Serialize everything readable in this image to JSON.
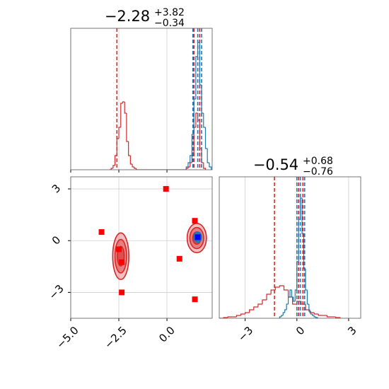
{
  "chart_data": [
    {
      "type": "histogram",
      "panel": "top-left",
      "title": {
        "value": "−2.28",
        "upper": "+3.82",
        "lower": "−0.34"
      },
      "xlim": [
        -5,
        2.35
      ],
      "ylim": [
        0,
        1
      ],
      "xticks": [
        -5,
        -2.5,
        0
      ],
      "grid": true,
      "series": [
        {
          "color": "#d62728",
          "bins": [
            -3.0,
            -2.9,
            -2.8,
            -2.7,
            -2.6,
            -2.5,
            -2.4,
            -2.3,
            -2.2,
            -2.1,
            -2.0,
            -1.9,
            -1.8,
            -1.7,
            -1.6,
            -1.5,
            -1.4,
            -1.3,
            -1.2,
            -1.1,
            -1.0,
            -0.9,
            -0.8,
            -0.7,
            -0.6,
            -0.5,
            -0.4,
            -0.3,
            -0.2,
            -0.1,
            0.0,
            0.1,
            0.2,
            0.3,
            0.4,
            0.5,
            0.6,
            0.7,
            0.8,
            0.9,
            1.0,
            1.1,
            1.2,
            1.3,
            1.4,
            1.5,
            1.6,
            1.7,
            1.8,
            1.9,
            2.0
          ],
          "values": [
            0,
            0.01,
            0.03,
            0.1,
            0.22,
            0.3,
            0.47,
            0.48,
            0.4,
            0.2,
            0.1,
            0.04,
            0.02,
            0.01,
            0,
            0,
            0,
            0,
            0,
            0,
            0,
            0,
            0,
            0,
            0,
            0,
            0,
            0,
            0,
            0,
            0,
            0,
            0,
            0,
            0,
            0,
            0,
            0,
            0,
            0,
            0.01,
            0.02,
            0.05,
            0.12,
            0.3,
            0.4,
            0.35,
            0.15,
            0.05,
            0.01
          ],
          "quantiles": [
            -2.6,
            1.4,
            1.7
          ]
        },
        {
          "color": "#1f77b4",
          "bins": [
            1.0,
            1.1,
            1.2,
            1.3,
            1.4,
            1.5,
            1.6,
            1.7,
            1.8,
            1.9,
            2.0,
            2.1,
            2.2,
            2.3
          ],
          "values": [
            0.02,
            0.05,
            0.1,
            0.25,
            0.5,
            0.8,
            0.9,
            0.6,
            0.4,
            0.3,
            0.15,
            0.05,
            0.02
          ],
          "quantiles": [
            1.35,
            1.6,
            1.8
          ]
        }
      ]
    },
    {
      "type": "scatter",
      "panel": "bottom-left",
      "xlim": [
        -5,
        2.35
      ],
      "ylim": [
        -4.5,
        3.7
      ],
      "xticks": [
        {
          "value": -5,
          "label": "−5.0"
        },
        {
          "value": -2.5,
          "label": "−2.5"
        },
        {
          "value": 0,
          "label": "0.0"
        }
      ],
      "yticks": [
        {
          "value": -3,
          "label": "−3"
        },
        0,
        3
      ],
      "grid": true,
      "contours": [
        {
          "color": "#d62728",
          "x": -2.4,
          "y": -0.9,
          "rx": 0.42,
          "ry": 1.35
        },
        {
          "color": "#d62728",
          "x": 1.55,
          "y": 0.15,
          "rx": 0.5,
          "ry": 0.85
        },
        {
          "color": "#1f77b4",
          "x": 1.6,
          "y": 0.2,
          "rx": 0.2,
          "ry": 0.3
        }
      ],
      "series": [
        {
          "color": "#ff0000",
          "x": [
            -3.4,
            -0.05,
            0.65,
            1.45,
            1.45,
            -2.35,
            -2.35,
            -2.5
          ],
          "values": [
            0.5,
            3.0,
            -1.05,
            1.15,
            -3.4,
            -3.0,
            -1.25,
            -0.5
          ]
        },
        {
          "color": "#0000ff",
          "x": [
            1.6
          ],
          "values": [
            0.2
          ]
        }
      ]
    },
    {
      "type": "histogram",
      "panel": "bottom-right",
      "title": {
        "value": "−0.54",
        "upper": "+0.68",
        "lower": "−0.76"
      },
      "xlim": [
        -4.5,
        3.7
      ],
      "ylim": [
        0,
        1
      ],
      "xticks": [
        {
          "value": -3,
          "label": "−3"
        },
        0,
        3
      ],
      "grid": true,
      "series": [
        {
          "color": "#d62728",
          "bins": [
            -4.5,
            -4.25,
            -4.0,
            -3.75,
            -3.5,
            -3.25,
            -3.0,
            -2.75,
            -2.5,
            -2.25,
            -2.0,
            -1.75,
            -1.5,
            -1.25,
            -1.0,
            -0.75,
            -0.5,
            -0.25,
            0.0,
            0.25,
            0.5,
            0.75,
            1.0,
            1.25,
            1.5,
            1.75,
            2.0,
            2.25,
            2.5
          ],
          "values": [
            0,
            0.005,
            0.01,
            0.01,
            0.02,
            0.03,
            0.04,
            0.06,
            0.08,
            0.1,
            0.13,
            0.17,
            0.2,
            0.22,
            0.23,
            0.2,
            0.15,
            0.1,
            0.12,
            0.1,
            0.06,
            0.04,
            0.03,
            0.02,
            0.02,
            0.01,
            0.01,
            0.005
          ],
          "quantiles": [
            -1.3,
            0.1,
            0.35
          ]
        },
        {
          "color": "#1f77b4",
          "bins": [
            -1.0,
            -0.9,
            -0.8,
            -0.7,
            -0.6,
            -0.5,
            -0.4,
            -0.3,
            -0.2,
            -0.1,
            0.0,
            0.1,
            0.2,
            0.3,
            0.4,
            0.5,
            0.6,
            0.7,
            0.8,
            0.9,
            1.0,
            1.1,
            1.2
          ],
          "values": [
            0.01,
            0.02,
            0.04,
            0.06,
            0.1,
            0.15,
            0.2,
            0.15,
            0.12,
            0.2,
            0.4,
            0.7,
            0.85,
            0.6,
            0.35,
            0.2,
            0.1,
            0.05,
            0.03,
            0.02,
            0.01,
            0.005
          ],
          "quantiles": [
            0,
            0.2,
            0.45
          ]
        }
      ]
    }
  ]
}
